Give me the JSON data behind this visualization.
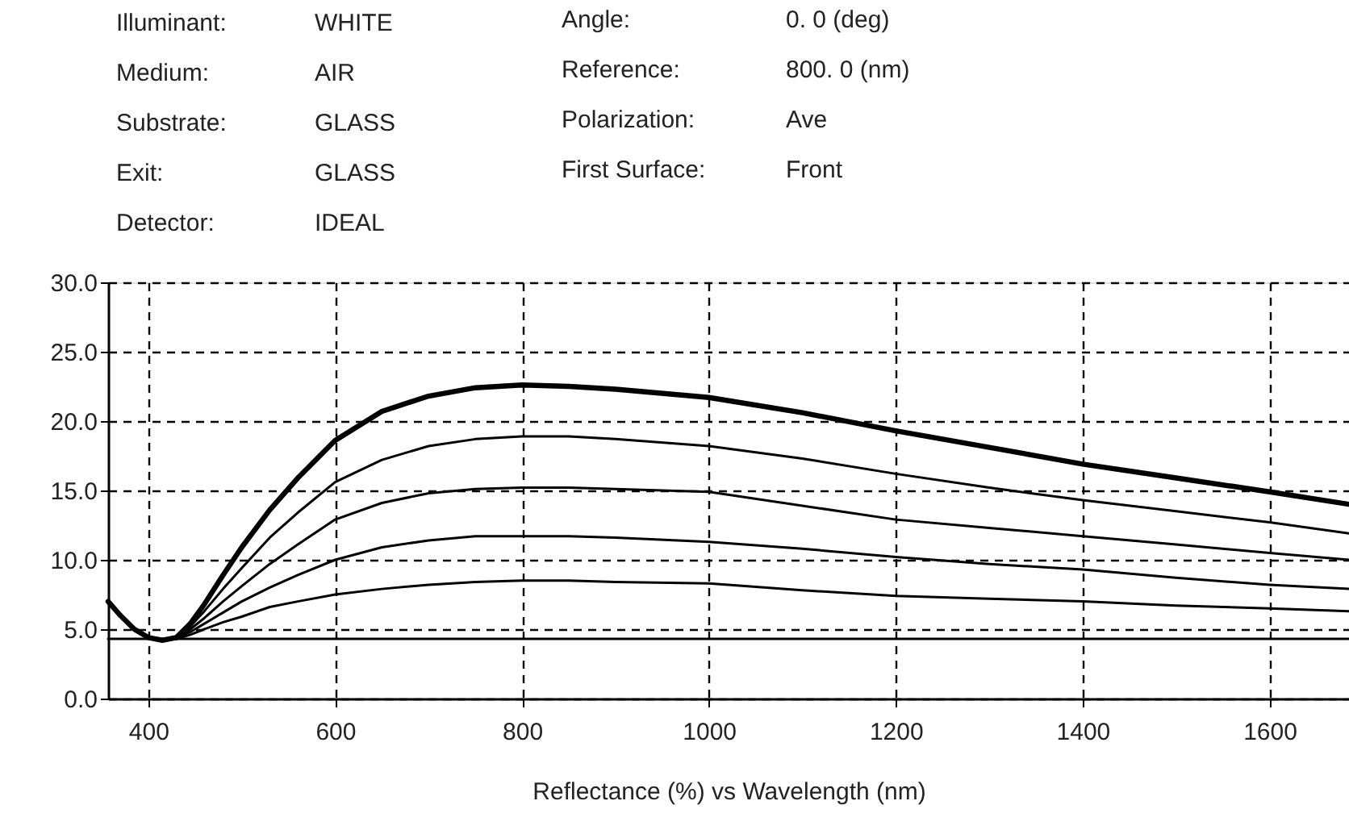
{
  "chart_data": {
    "type": "line",
    "xlabel": "Reflectance (%) vs Wavelength (nm)",
    "annotations": [
      "Illuminant:",
      "WHITE",
      "Medium:",
      "AIR",
      "Substrate:",
      "GLASS",
      "Exit:",
      "GLASS",
      "Detector:",
      "IDEAL",
      "Angle:",
      "0. 0 (deg)",
      "Reference:",
      "800. 0 (nm)",
      "Polarization:",
      "Ave",
      "First  Surface:",
      "Front"
    ],
    "x": [
      357,
      370,
      385,
      400,
      415,
      430,
      445,
      460,
      480,
      500,
      530,
      560,
      600,
      650,
      700,
      750,
      800,
      850,
      900,
      1000,
      1100,
      1200,
      1300,
      1400,
      1500,
      1600,
      1685
    ],
    "series": [
      {
        "color": "#000000",
        "values": [
          7.0,
          6.0,
          5.0,
          4.4,
          4.2,
          4.4,
          5.4,
          6.8,
          8.9,
          10.9,
          13.6,
          15.9,
          18.6,
          20.7,
          21.8,
          22.4,
          22.6,
          22.5,
          22.3,
          21.7,
          20.6,
          19.3,
          18.1,
          16.9,
          15.9,
          14.9,
          14.0
        ]
      },
      {
        "color": "#000000",
        "values": [
          7.0,
          6.0,
          5.0,
          4.4,
          4.2,
          4.4,
          5.2,
          6.3,
          7.9,
          9.4,
          11.6,
          13.4,
          15.6,
          17.2,
          18.2,
          18.7,
          18.9,
          18.9,
          18.7,
          18.2,
          17.3,
          16.2,
          15.2,
          14.3,
          13.5,
          12.7,
          11.9
        ]
      },
      {
        "color": "#000000",
        "values": [
          7.0,
          6.0,
          5.0,
          4.4,
          4.2,
          4.3,
          5.0,
          5.8,
          7.0,
          8.1,
          9.7,
          11.1,
          12.9,
          14.1,
          14.8,
          15.1,
          15.2,
          15.2,
          15.1,
          14.9,
          13.9,
          12.9,
          12.3,
          11.7,
          11.1,
          10.5,
          10.0
        ]
      },
      {
        "color": "#000000",
        "values": [
          7.0,
          6.0,
          5.0,
          4.4,
          4.2,
          4.3,
          4.8,
          5.4,
          6.2,
          7.0,
          8.0,
          8.9,
          10.0,
          10.9,
          11.4,
          11.7,
          11.7,
          11.7,
          11.6,
          11.3,
          10.8,
          10.2,
          9.7,
          9.3,
          8.7,
          8.2,
          7.9
        ]
      },
      {
        "color": "#000000",
        "values": [
          7.0,
          6.0,
          5.0,
          4.4,
          4.2,
          4.3,
          4.6,
          5.0,
          5.5,
          5.9,
          6.6,
          7.0,
          7.5,
          7.9,
          8.2,
          8.4,
          8.5,
          8.5,
          8.4,
          8.3,
          7.8,
          7.4,
          7.2,
          7.0,
          6.7,
          6.5,
          6.3
        ]
      },
      {
        "color": "#000000",
        "x": [
          357,
          1685
        ],
        "values": [
          4.3,
          4.3
        ]
      }
    ],
    "xlim": [
      357,
      1685
    ],
    "xticks": [
      400,
      600,
      800,
      1000,
      1200,
      1400,
      1600
    ],
    "ylim": [
      0,
      30
    ],
    "yticks": [
      {
        "value": 0,
        "label": "0.0"
      },
      {
        "value": 5,
        "label": "5.0"
      },
      {
        "value": 10,
        "label": "10.0"
      },
      {
        "value": 15,
        "label": "15.0"
      },
      {
        "value": 20,
        "label": "20.0"
      },
      {
        "value": 25,
        "label": "25.0"
      },
      {
        "value": 30,
        "label": "30.0"
      }
    ],
    "grid": true,
    "marker": "none",
    "line_style": "solid"
  }
}
